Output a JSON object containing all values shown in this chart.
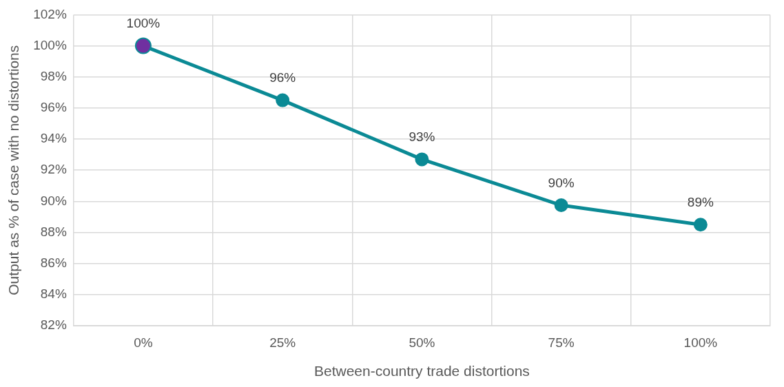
{
  "chart_data": {
    "type": "line",
    "xlabel": "Between-country trade distortions",
    "ylabel": "Output as % of case with no distortions",
    "categories": [
      "0%",
      "25%",
      "50%",
      "75%",
      "100%"
    ],
    "series": [
      {
        "color": "#0b8a95",
        "colors": [
          "#7030a0",
          "#0b8a95",
          "#0b8a95",
          "#0b8a95",
          "#0b8a95"
        ],
        "values": [
          100,
          96.5,
          92.7,
          89.75,
          88.5
        ],
        "value_labels": [
          "100%",
          "96%",
          "93%",
          "90%",
          "89%"
        ]
      }
    ],
    "ylim": [
      82,
      102
    ],
    "yticks": [
      {
        "value": 82,
        "label": "82%"
      },
      {
        "value": 84,
        "label": "84%"
      },
      {
        "value": 86,
        "label": "86%"
      },
      {
        "value": 88,
        "label": "88%"
      },
      {
        "value": 90,
        "label": "90%"
      },
      {
        "value": 92,
        "label": "92%"
      },
      {
        "value": 94,
        "label": "94%"
      },
      {
        "value": 96,
        "label": "96%"
      },
      {
        "value": 98,
        "label": "98%"
      },
      {
        "value": 100,
        "label": "100%"
      },
      {
        "value": 102,
        "label": "102%"
      }
    ],
    "grid": true,
    "legend": false,
    "marker": "circle",
    "line_style": "solid"
  }
}
